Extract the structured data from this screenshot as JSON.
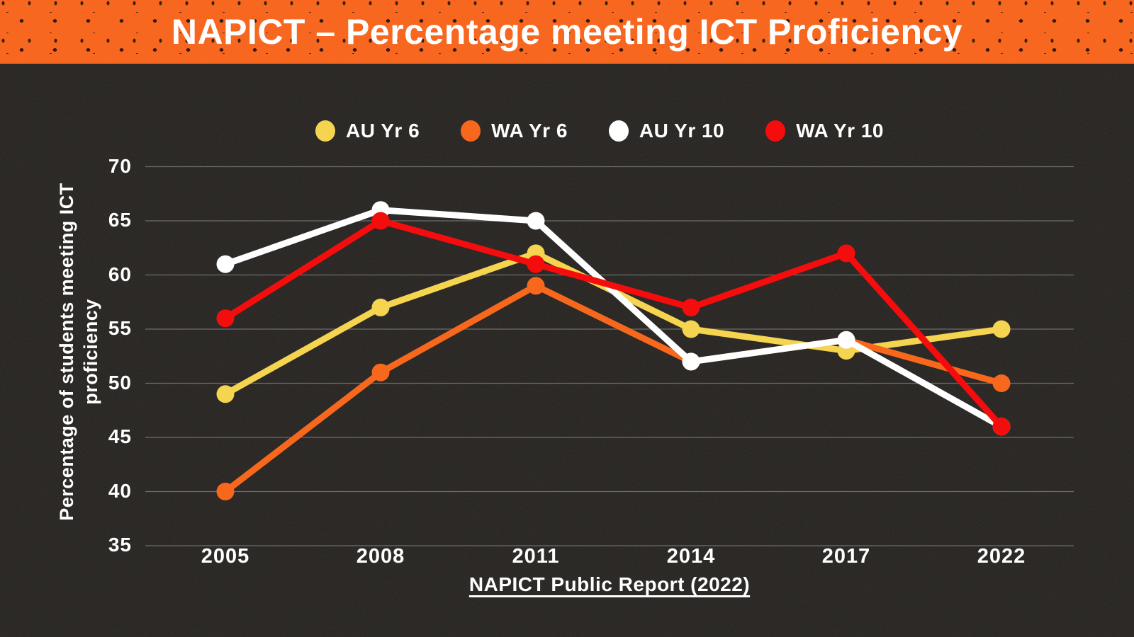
{
  "banner": {
    "title": "NAPICT – Percentage meeting ICT Proficiency"
  },
  "colors": {
    "banner_bg": "#F8671F",
    "background": "#171411",
    "grid": "rgba(255,255,255,0.32)",
    "text": "#FFFFFF"
  },
  "chart_data": {
    "type": "line",
    "categories": [
      "2005",
      "2008",
      "2011",
      "2014",
      "2017",
      "2022"
    ],
    "series": [
      {
        "name": "AU Yr 6",
        "color": "#F5D44F",
        "values": [
          49,
          57,
          62,
          55,
          53,
          55
        ]
      },
      {
        "name": "WA Yr 6",
        "color": "#F7681D",
        "values": [
          40,
          51,
          59,
          52,
          54,
          50
        ]
      },
      {
        "name": "AU Yr 10",
        "color": "#FFFFFF",
        "values": [
          61,
          66,
          65,
          52,
          54,
          46
        ]
      },
      {
        "name": "WA Yr 10",
        "color": "#F50D0D",
        "values": [
          56,
          65,
          61,
          57,
          62,
          46
        ]
      }
    ],
    "ylabel": "Percentage of students meeting ICT proficiency",
    "xlabel": "",
    "ylim": [
      35,
      70
    ],
    "yticks": [
      35,
      40,
      45,
      50,
      55,
      60,
      65,
      70
    ],
    "grid": true,
    "legend_position": "top"
  },
  "caption": {
    "text": "NAPICT Public Report (2022)"
  }
}
